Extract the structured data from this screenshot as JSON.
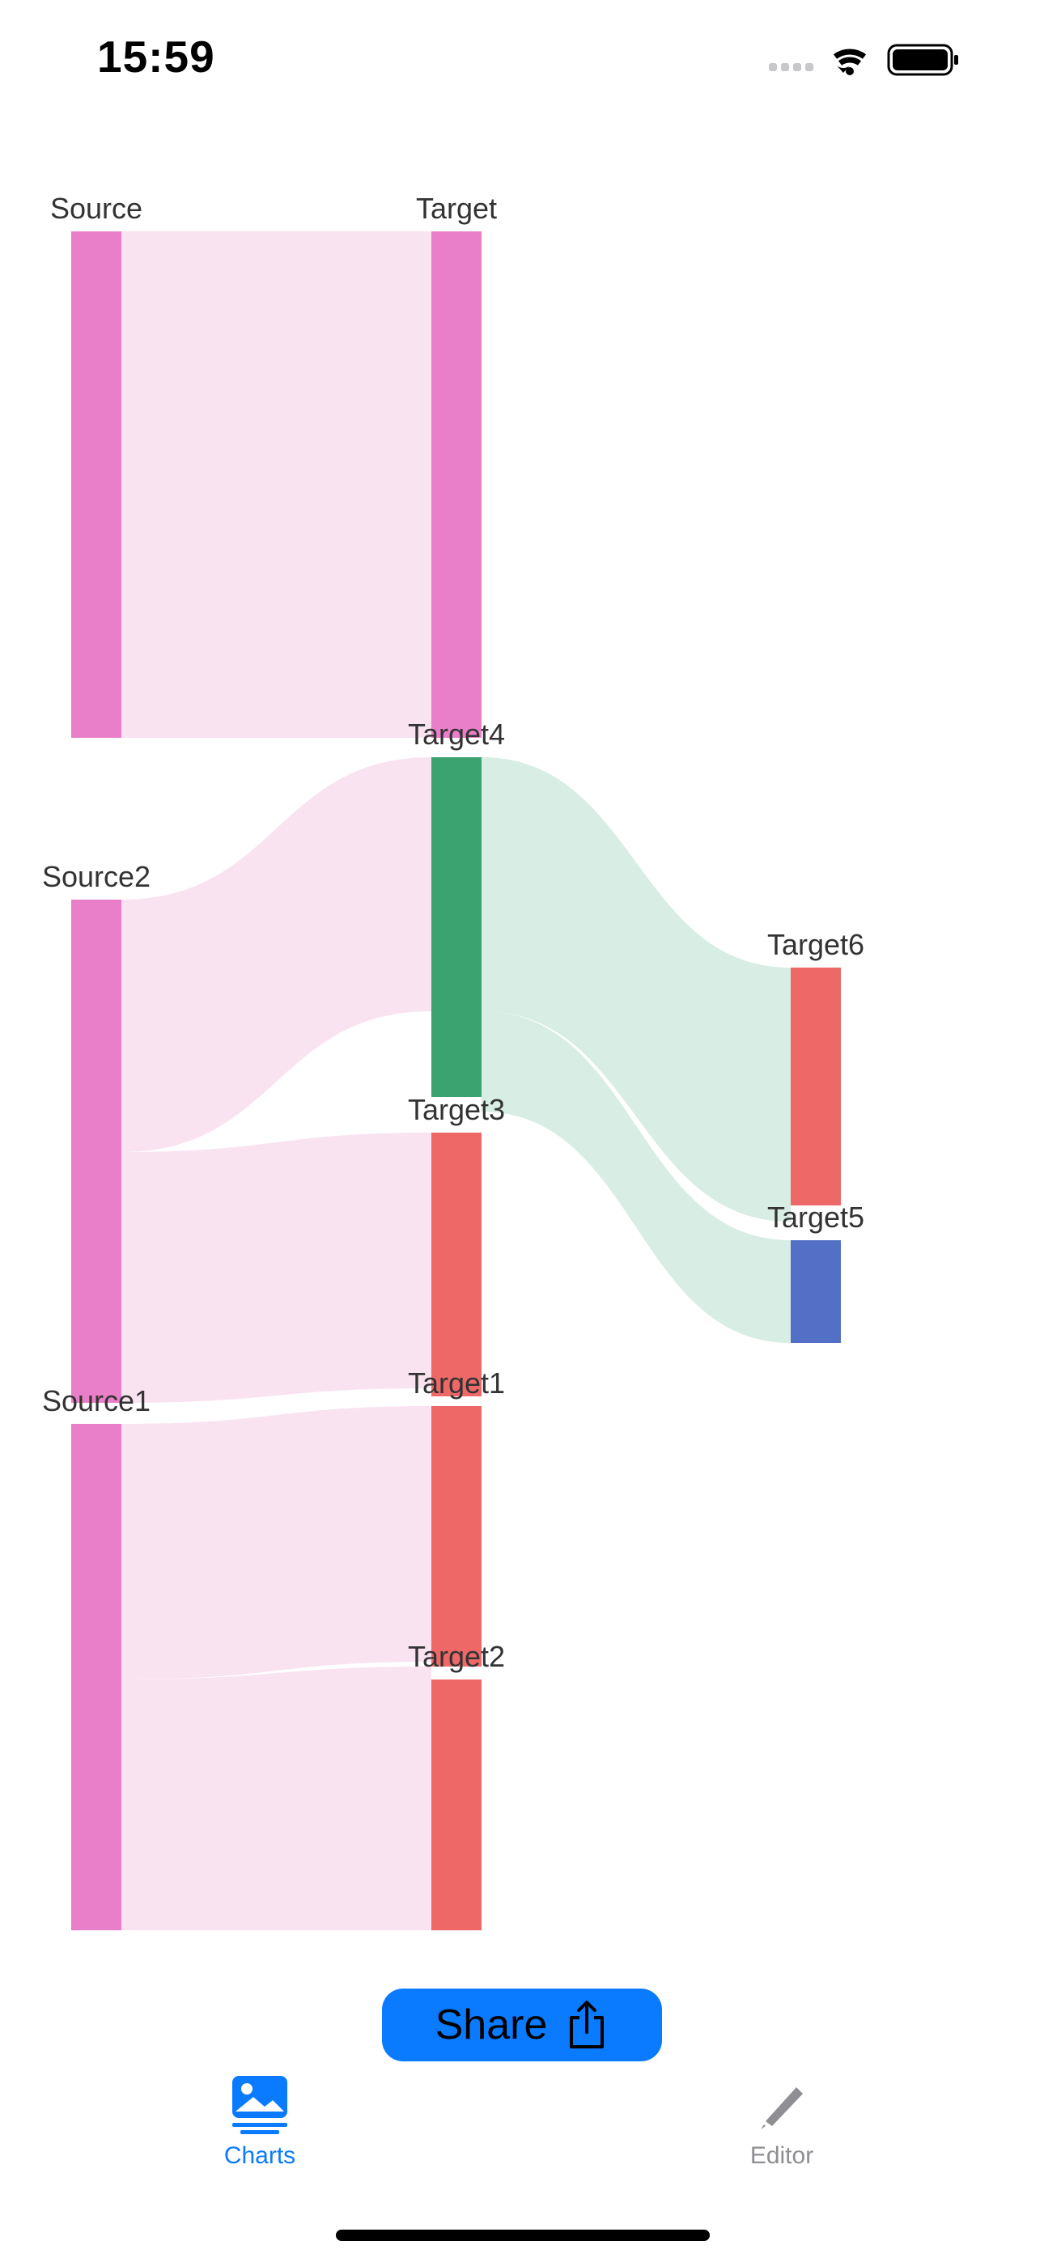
{
  "status_bar": {
    "time": "15:59",
    "icons": [
      "cellular-signal-icon",
      "wifi-icon",
      "battery-icon"
    ]
  },
  "chart_data": {
    "type": "sankey",
    "nodes": [
      {
        "name": "Source",
        "color": "#e97fc8"
      },
      {
        "name": "Target",
        "color": "#e97fc8"
      },
      {
        "name": "Source2",
        "color": "#e97fc8"
      },
      {
        "name": "Source1",
        "color": "#e97fc8"
      },
      {
        "name": "Target4",
        "color": "#3aa36f"
      },
      {
        "name": "Target3",
        "color": "#ef6868"
      },
      {
        "name": "Target1",
        "color": "#ef6868"
      },
      {
        "name": "Target2",
        "color": "#ef6868"
      },
      {
        "name": "Target6",
        "color": "#ef6868"
      },
      {
        "name": "Target5",
        "color": "#5470c6"
      }
    ],
    "links": [
      {
        "source": "Source",
        "target": "Target",
        "value": 20
      },
      {
        "source": "Source2",
        "target": "Target4",
        "value": 10
      },
      {
        "source": "Source2",
        "target": "Target3",
        "value": 10
      },
      {
        "source": "Source1",
        "target": "Target1",
        "value": 10
      },
      {
        "source": "Source1",
        "target": "Target2",
        "value": 10
      },
      {
        "source": "Target4",
        "target": "Target6",
        "value": 10
      },
      {
        "source": "Target3",
        "target": "Target5",
        "value": 4
      }
    ],
    "link_color": {
      "pink": "#f9e3f1",
      "green": "#d8ede3"
    }
  },
  "share": {
    "label": "Share"
  },
  "tabs": [
    {
      "label": "Charts",
      "icon": "photo-icon",
      "active": true
    },
    {
      "label": "Editor",
      "icon": "pencil-icon",
      "active": false
    }
  ],
  "colors": {
    "accent": "#0a7aff",
    "inactive": "#8e8e93"
  }
}
